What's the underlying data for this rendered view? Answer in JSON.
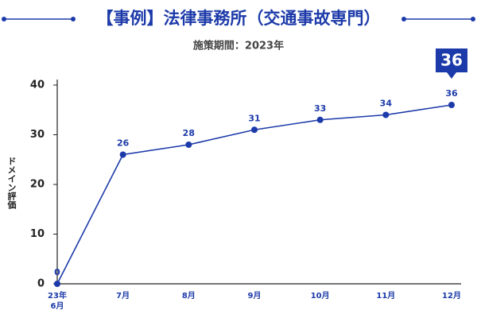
{
  "chart_data": {
    "type": "line",
    "title": "【事例】法律事務所（交通事故専門）",
    "subtitle": "施策期間：2023年",
    "y_label": "ドメイン評価",
    "categories": [
      "23年\n6月",
      "7月",
      "8月",
      "9月",
      "10月",
      "11月",
      "12月"
    ],
    "series": [
      {
        "name": "ドメイン評価",
        "color": "#1c3aa9",
        "values": [
          0,
          26,
          28,
          31,
          33,
          34,
          36
        ]
      }
    ],
    "ylim": [
      0,
      40
    ],
    "yticks": [
      0,
      10,
      20,
      30,
      40
    ]
  }
}
